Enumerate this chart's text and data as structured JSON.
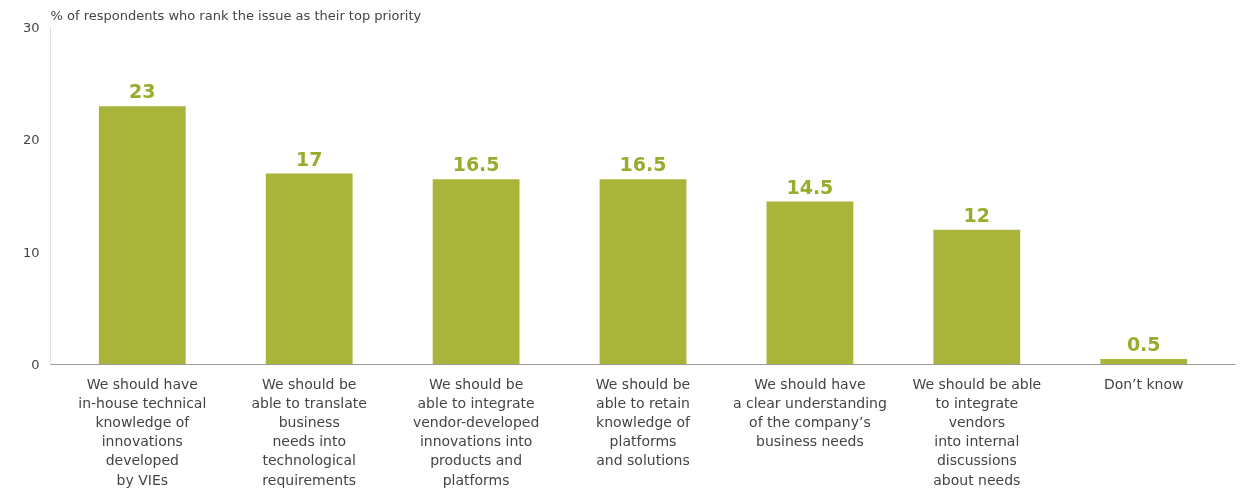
{
  "chart_data": {
    "type": "bar",
    "ylabel": "% of respondents who rank the issue as their top priority",
    "categories": [
      "We should have\nin-house technical\nknowledge of\ninnovations\ndeveloped\nby VIEs",
      "We should be\nable to translate\nbusiness\nneeds into\ntechnological\nrequirements",
      "We should be\nable to integrate\nvendor-developed\ninnovations into\nproducts and\nplatforms",
      "We should be\nable to retain\nknowledge of\nplatforms\nand solutions",
      "We should have\na clear understanding\nof the company’s\nbusiness needs",
      "We should be able\nto integrate\nvendors\ninto internal\ndiscussions\nabout needs",
      "Don’t know"
    ],
    "values": [
      23,
      17,
      16.5,
      16.5,
      14.5,
      12,
      0.5
    ],
    "color": "#a8b43a",
    "data_labels": true,
    "ylim": [
      0,
      30
    ],
    "yticks": [
      0,
      10,
      20,
      30
    ],
    "grid": false
  }
}
